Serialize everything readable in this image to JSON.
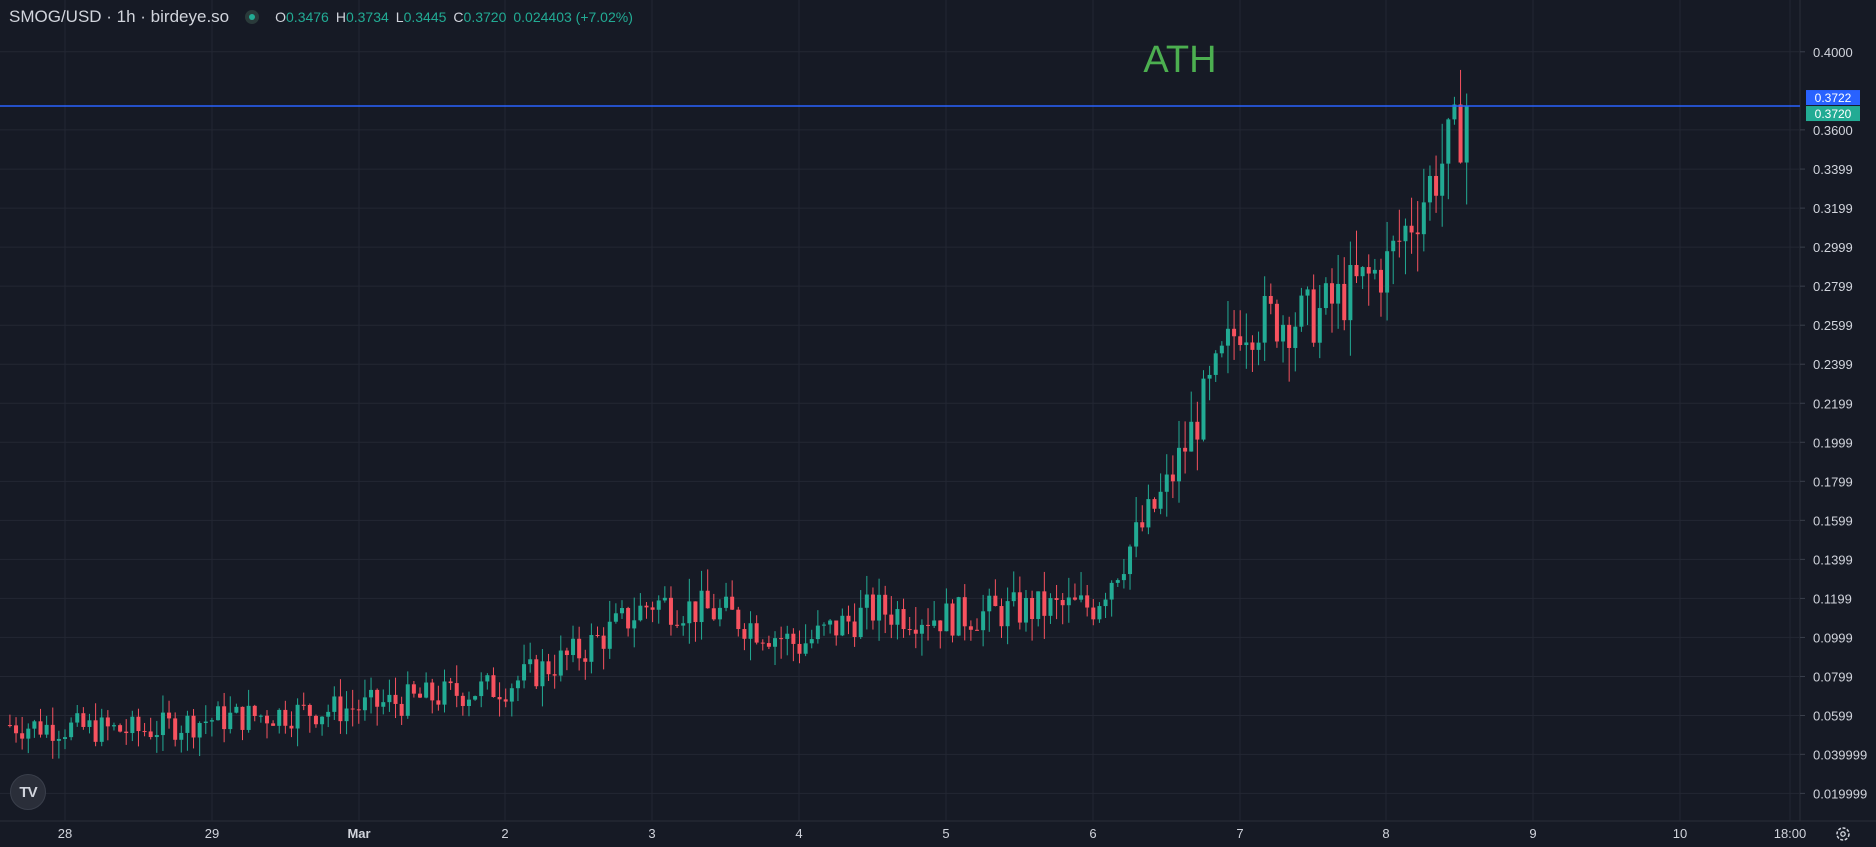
{
  "header": {
    "symbol": "SMOG/USD · 1h · birdeye.so",
    "o_label": "O",
    "o_value": "0.3476",
    "h_label": "H",
    "h_value": "0.3734",
    "l_label": "L",
    "l_value": "0.3445",
    "c_label": "C",
    "c_value": "0.3720",
    "change": "0.024403 (+7.02%)"
  },
  "logo_text": "TV",
  "colors": {
    "background": "#161a25",
    "grid": "#232733",
    "up": "#22ab94",
    "down": "#f7525f",
    "price_line": "#2962ff",
    "annotation": "#4caf50",
    "axis_text": "#d1d4dc"
  },
  "chart_data": {
    "type": "candlestick",
    "annotation": "ATH",
    "y_ticks": [
      "0.4000",
      "0.3600",
      "0.3399",
      "0.3199",
      "0.2999",
      "0.2799",
      "0.2599",
      "0.2399",
      "0.2199",
      "0.1999",
      "0.1799",
      "0.1599",
      "0.1399",
      "0.1199",
      "0.0999",
      "0.0799",
      "0.0599",
      "0.039999",
      "0.019999"
    ],
    "x_ticks": [
      "28",
      "29",
      "Mar",
      "2",
      "3",
      "4",
      "5",
      "6",
      "7",
      "8",
      "9",
      "10",
      "18:00"
    ],
    "price_labels": [
      {
        "value": "0.3722",
        "color": "#2962ff"
      },
      {
        "value": "0.3720",
        "color": "#22ab94"
      }
    ],
    "current_line": 0.3722,
    "ylim": [
      0.0125,
      0.4127
    ],
    "series": [
      {
        "day": "27",
        "hour": 15,
        "close": 0.055
      },
      {
        "day": "28",
        "hour": 12,
        "close": 0.052
      },
      {
        "day": "29",
        "hour": 0,
        "close": 0.058
      },
      {
        "day": "Mar",
        "hour": 0,
        "close": 0.064
      },
      {
        "day": "2",
        "hour": 0,
        "close": 0.075
      },
      {
        "day": "2",
        "hour": 12,
        "close": 0.092
      },
      {
        "day": "3",
        "hour": 0,
        "close": 0.118
      },
      {
        "day": "3",
        "hour": 12,
        "close": 0.112
      },
      {
        "day": "4",
        "hour": 0,
        "close": 0.096
      },
      {
        "day": "4",
        "hour": 12,
        "close": 0.114
      },
      {
        "day": "5",
        "hour": 0,
        "close": 0.11
      },
      {
        "day": "5",
        "hour": 12,
        "close": 0.114
      },
      {
        "day": "6",
        "hour": 0,
        "close": 0.116
      },
      {
        "day": "6",
        "hour": 12,
        "close": 0.176
      },
      {
        "day": "7",
        "hour": 0,
        "close": 0.262
      },
      {
        "day": "7",
        "hour": 12,
        "close": 0.264
      },
      {
        "day": "8",
        "hour": 0,
        "close": 0.29
      },
      {
        "day": "8",
        "hour": 14,
        "close": 0.372
      }
    ]
  }
}
